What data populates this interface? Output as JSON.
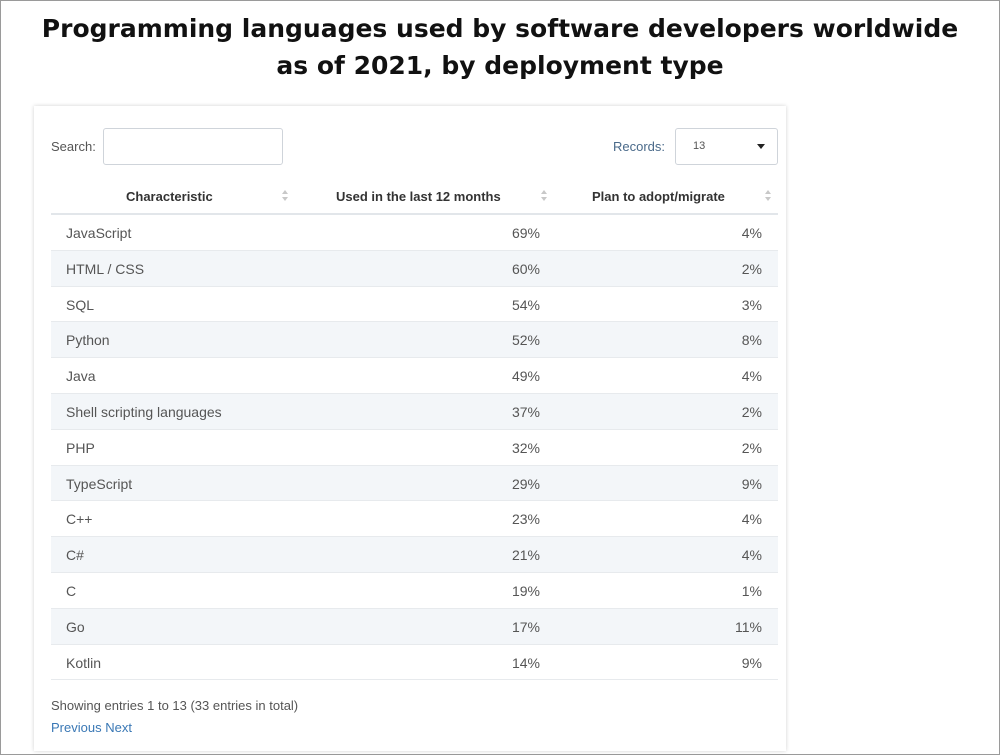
{
  "title_line1": "Programming languages used by software developers worldwide",
  "title_line2": "as of 2021, by deployment type",
  "search": {
    "label": "Search:",
    "value": ""
  },
  "records": {
    "label": "Records:",
    "value": "13"
  },
  "columns": [
    "Characteristic",
    "Used in the last 12 months",
    "Plan to adopt/migrate"
  ],
  "footer": {
    "entries_text": "Showing entries 1 to 13 (33 entries in total)",
    "previous": "Previous",
    "next": "Next"
  },
  "chart_data": {
    "type": "table",
    "title": "Programming languages used by software developers worldwide as of 2021, by deployment type",
    "columns": [
      "Characteristic",
      "Used in the last 12 months",
      "Plan to adopt/migrate"
    ],
    "rows": [
      [
        "JavaScript",
        "69%",
        "4%"
      ],
      [
        "HTML / CSS",
        "60%",
        "2%"
      ],
      [
        "SQL",
        "54%",
        "3%"
      ],
      [
        "Python",
        "52%",
        "8%"
      ],
      [
        "Java",
        "49%",
        "4%"
      ],
      [
        "Shell scripting languages",
        "37%",
        "2%"
      ],
      [
        "PHP",
        "32%",
        "2%"
      ],
      [
        "TypeScript",
        "29%",
        "9%"
      ],
      [
        "C++",
        "23%",
        "4%"
      ],
      [
        "C#",
        "21%",
        "4%"
      ],
      [
        "C",
        "19%",
        "1%"
      ],
      [
        "Go",
        "17%",
        "11%"
      ],
      [
        "Kotlin",
        "14%",
        "9%"
      ]
    ]
  }
}
